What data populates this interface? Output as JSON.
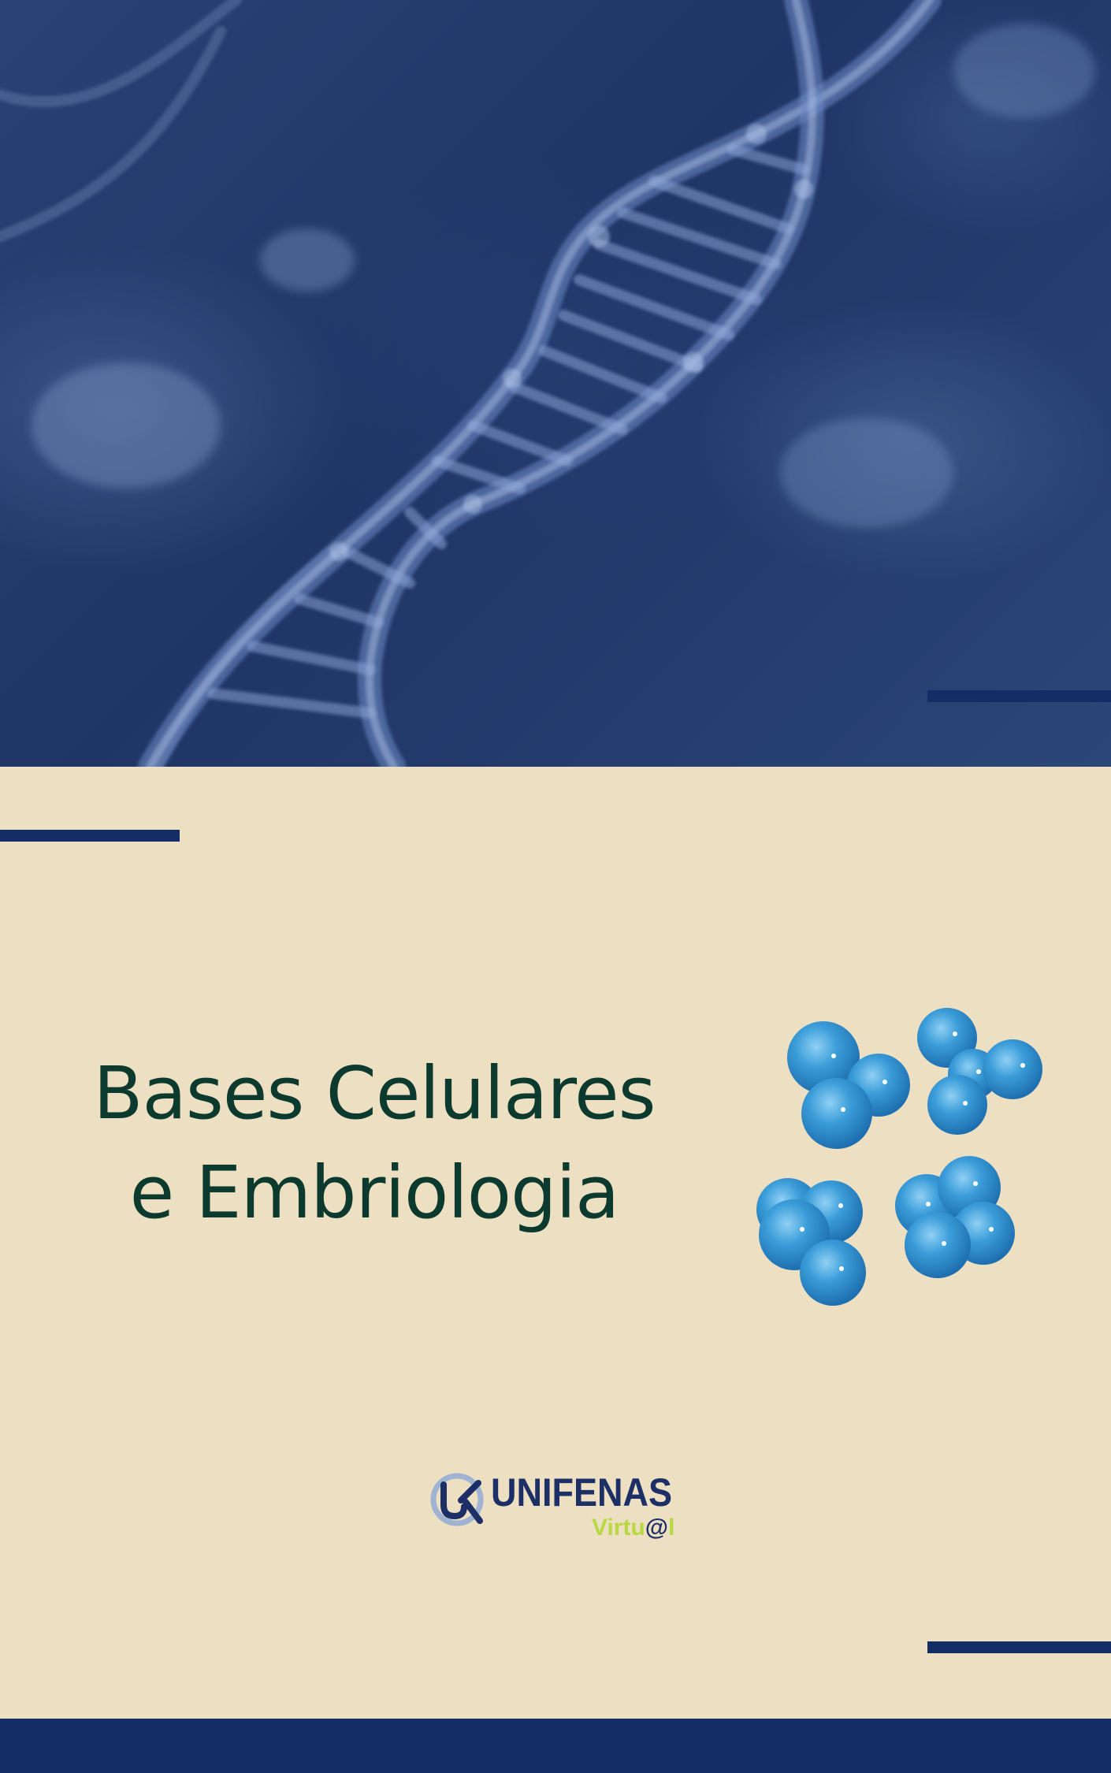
{
  "cover": {
    "title_line1": "Bases Celulares",
    "title_line2": "e Embriologia"
  },
  "logo": {
    "name": "UNIFENAS",
    "sub_prefix": "Virtu",
    "sub_at": "@",
    "sub_suffix": "l",
    "mark_icon": "unifenas-logo-icon"
  },
  "colors": {
    "navy": "#142d66",
    "hero_blue": "#1f3565",
    "cream": "#ecdfc2",
    "title_green": "#0d3a2e",
    "cell_blue": "#3a9cd8",
    "logo_green": "#b7d943"
  },
  "hero_image": "dna-helix-illustration",
  "cells_image": "cell-clusters-illustration"
}
